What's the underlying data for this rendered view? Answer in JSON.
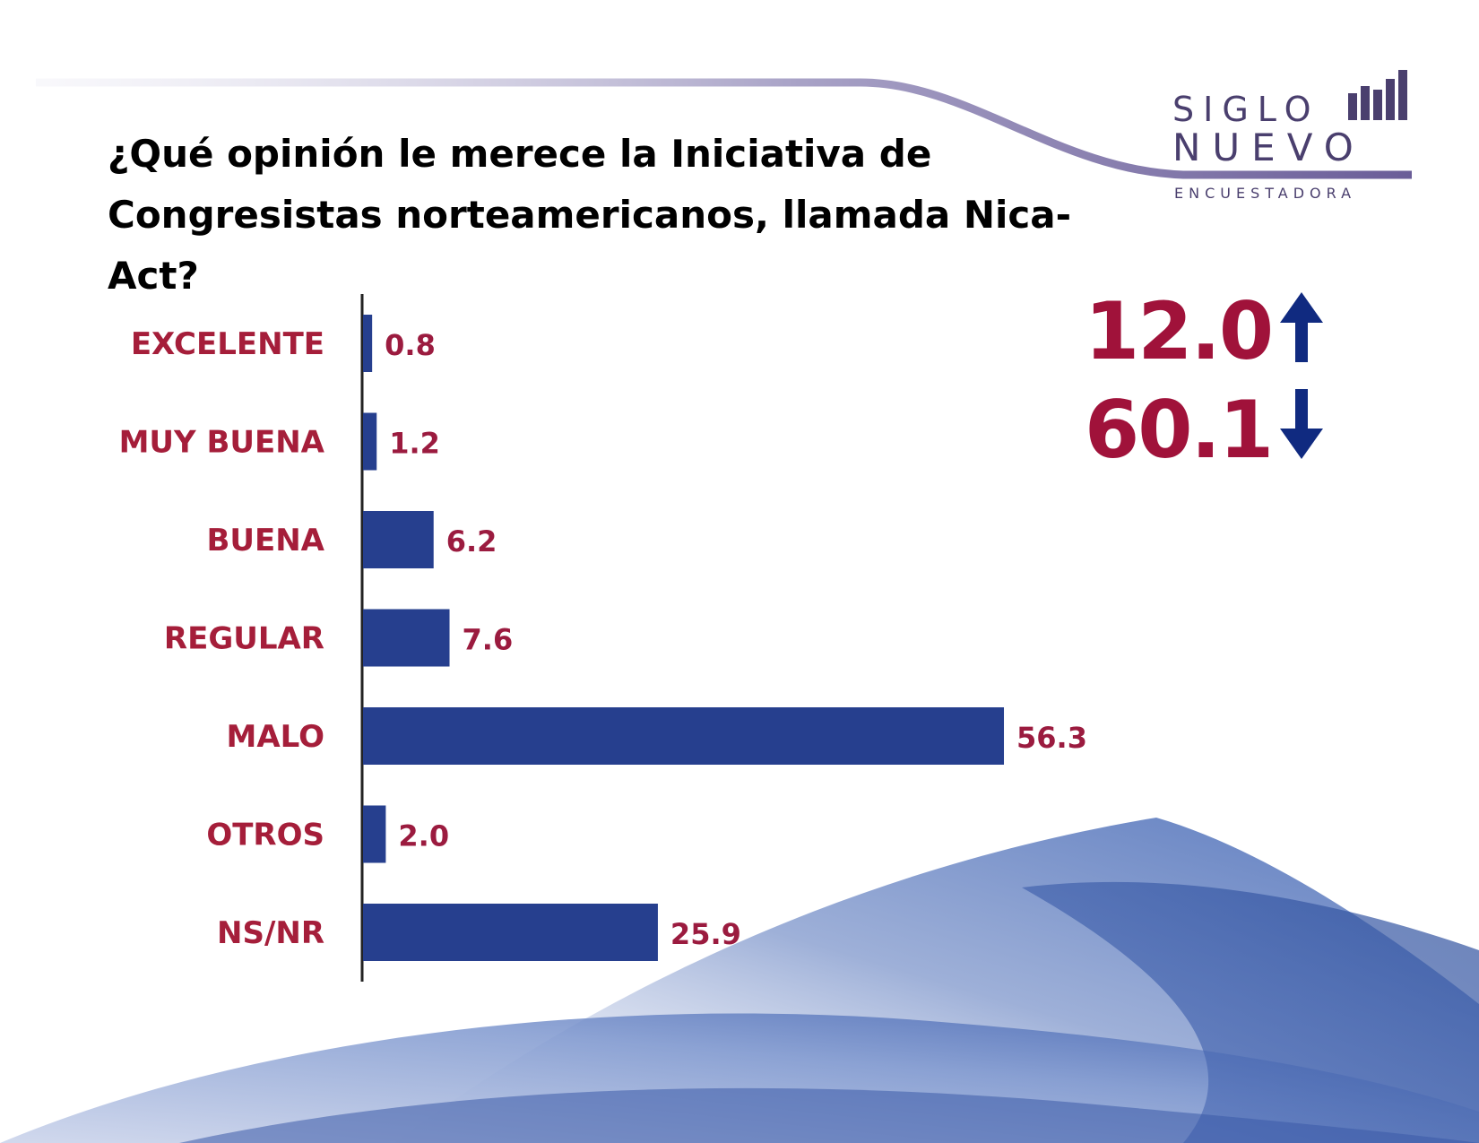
{
  "title": {
    "line1": "¿Qué opinión le merece la Iniciativa de",
    "line2": "Congresistas norteamericanos, llamada Nica-Act?"
  },
  "logo": {
    "word1": "SIGLO",
    "word2": "NUEVO",
    "subtitle": "ENCUESTADORA"
  },
  "summary": {
    "up_value": "12.0",
    "down_value": "60.1",
    "up_icon": "arrow-up-icon",
    "down_icon": "arrow-down-icon"
  },
  "colors": {
    "bar": "#263f8e",
    "label": "#a51e3a",
    "value": "#9b1b3f",
    "arrow": "#102a80"
  },
  "chart_data": {
    "type": "bar",
    "orientation": "horizontal",
    "categories": [
      "EXCELENTE",
      "MUY BUENA",
      "BUENA",
      "REGULAR",
      "MALO",
      "OTROS",
      "NS/NR"
    ],
    "values": [
      0.8,
      1.2,
      6.2,
      7.6,
      56.3,
      2.0,
      25.9
    ],
    "value_labels": [
      "0.8",
      "1.2",
      "6.2",
      "7.6",
      "56.3",
      "2.0",
      "25.9"
    ],
    "xlim": [
      0,
      60
    ],
    "grid": false
  }
}
